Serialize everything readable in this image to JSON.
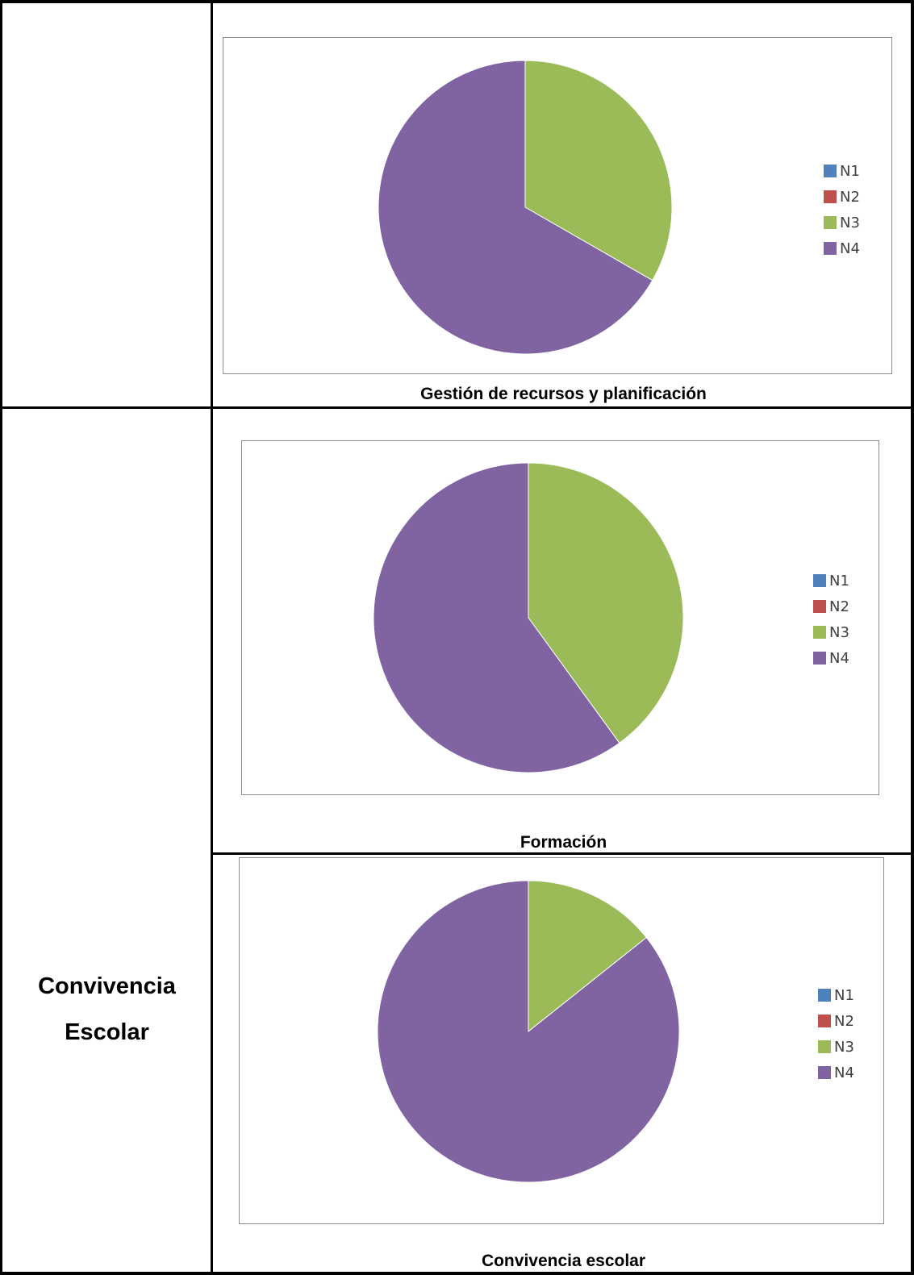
{
  "section": {
    "line1": "Convivencia",
    "line2": "Escolar"
  },
  "captions": {
    "c1": "Gestión de recursos y planificación",
    "c2": "Formación",
    "c3": "Convivencia escolar"
  },
  "legend": [
    "N1",
    "N2",
    "N3",
    "N4"
  ],
  "colors": {
    "N1": "#4F81BD",
    "N2": "#C0504D",
    "N3": "#9BBB59",
    "N4": "#8064A2"
  },
  "chart_data": [
    {
      "type": "pie",
      "title": "Gestión de recursos y planificación",
      "categories": [
        "N1",
        "N2",
        "N3",
        "N4"
      ],
      "values": [
        0,
        0,
        33.3,
        66.7
      ],
      "legend_position": "right"
    },
    {
      "type": "pie",
      "title": "Formación",
      "categories": [
        "N1",
        "N2",
        "N3",
        "N4"
      ],
      "values": [
        0,
        0,
        40,
        60
      ],
      "legend_position": "right"
    },
    {
      "type": "pie",
      "title": "Convivencia escolar",
      "categories": [
        "N1",
        "N2",
        "N3",
        "N4"
      ],
      "values": [
        0,
        0,
        14.3,
        85.7
      ],
      "legend_position": "right"
    }
  ]
}
